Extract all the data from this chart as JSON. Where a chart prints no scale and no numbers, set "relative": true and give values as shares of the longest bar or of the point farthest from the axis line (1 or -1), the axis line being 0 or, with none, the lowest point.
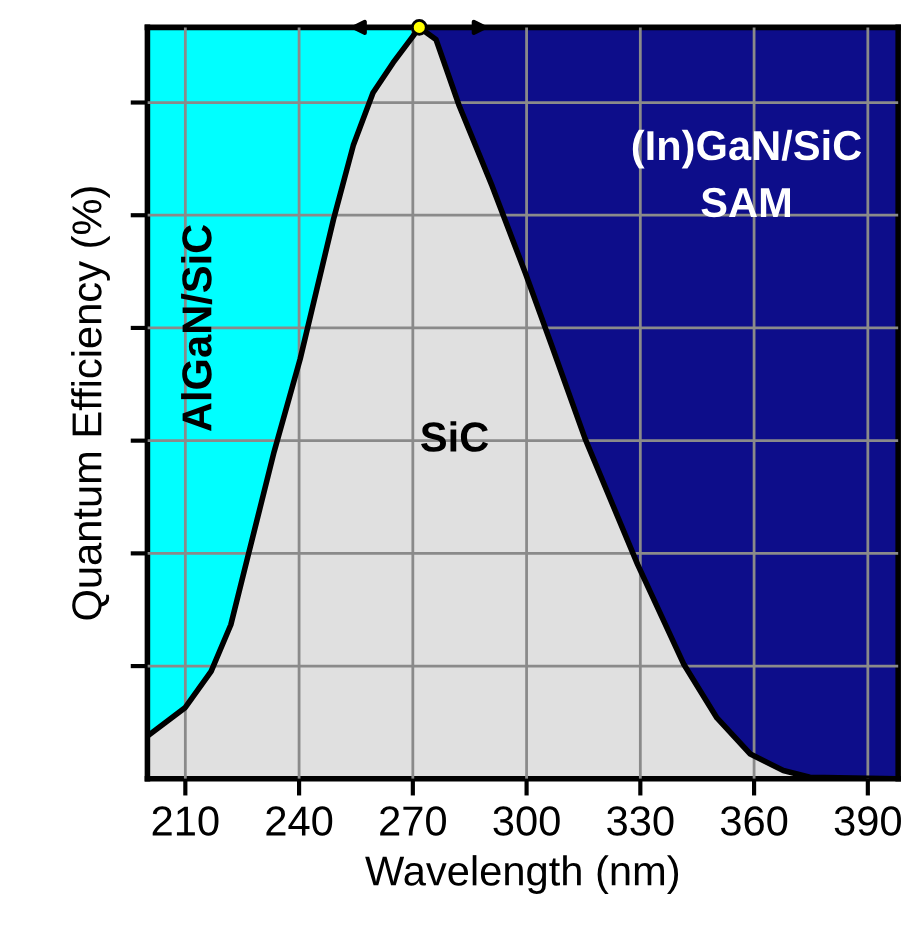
{
  "chart_data": {
    "type": "area",
    "relative": true,
    "xlabel": "Wavelength (nm)",
    "ylabel": "Quantum Efficiency (%)",
    "xlim": [
      200,
      398
    ],
    "xticks": [
      210,
      240,
      270,
      300,
      330,
      360,
      390
    ],
    "grid": true,
    "tick_labels": "x",
    "series": [
      {
        "name": "SiC",
        "color": "#e0e0e0",
        "x": [
          200.6,
          210,
          216.8,
          222,
          226.4,
          233.4,
          240.3,
          249.1,
          254.3,
          259.5,
          264.8,
          270,
          271.7,
          276.1,
          282.2,
          290.9,
          299.6,
          306.6,
          315.4,
          329.3,
          341.5,
          350.2,
          359,
          367.7,
          374.7,
          397
        ],
        "values": [
          0.059,
          0.095,
          0.143,
          0.205,
          0.294,
          0.435,
          0.559,
          0.745,
          0.843,
          0.913,
          0.953,
          0.988,
          1.0,
          0.984,
          0.896,
          0.789,
          0.674,
          0.577,
          0.453,
          0.285,
          0.152,
          0.081,
          0.033,
          0.011,
          0.002,
          0
        ]
      }
    ],
    "bands": [
      {
        "axis": "x",
        "from": 200,
        "to": 271.7,
        "label": "AlGaN/SiC",
        "color": "#00ffff"
      },
      {
        "axis": "x",
        "from": 271.7,
        "to": 398,
        "label": "(In)GaN/SiC\nSAM",
        "color": "#0d0d8a"
      }
    ]
  }
}
